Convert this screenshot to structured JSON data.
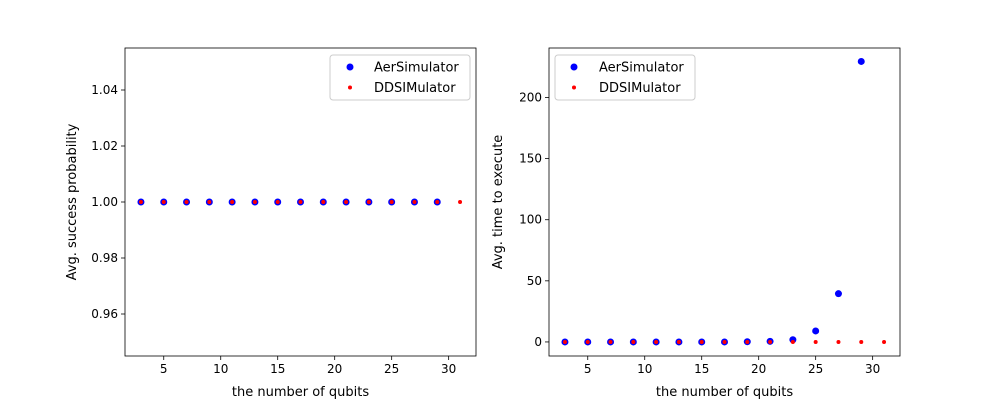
{
  "colors": {
    "aer": "#0000ff",
    "ddsi": "#ff0000",
    "axis": "#000000",
    "legend_border": "#cccccc"
  },
  "chart_data": [
    {
      "type": "scatter",
      "xlabel": "the number of qubits",
      "ylabel": "Avg. success probability",
      "xlim": [
        1.6,
        32.4
      ],
      "ylim": [
        0.945,
        1.055
      ],
      "xticks": [
        5,
        10,
        15,
        20,
        25,
        30
      ],
      "yticks": [
        0.96,
        0.98,
        1.0,
        1.02,
        1.04
      ],
      "ytick_labels": [
        "0.96",
        "0.98",
        "1.00",
        "1.02",
        "1.04"
      ],
      "grid": false,
      "legend": "top-right",
      "series": [
        {
          "name": "AerSimulator",
          "color": "#0000ff",
          "marker": "large",
          "x": [
            3,
            5,
            7,
            9,
            11,
            13,
            15,
            17,
            19,
            21,
            23,
            25,
            27,
            29
          ],
          "y": [
            1,
            1,
            1,
            1,
            1,
            1,
            1,
            1,
            1,
            1,
            1,
            1,
            1,
            1
          ]
        },
        {
          "name": "DDSIMulator",
          "color": "#ff0000",
          "marker": "small",
          "x": [
            3,
            5,
            7,
            9,
            11,
            13,
            15,
            17,
            19,
            21,
            23,
            25,
            27,
            29,
            31
          ],
          "y": [
            1,
            1,
            1,
            1,
            1,
            1,
            1,
            1,
            1,
            1,
            1,
            1,
            1,
            1,
            1
          ]
        }
      ]
    },
    {
      "type": "scatter",
      "xlabel": "the number of qubits",
      "ylabel": "Avg. time to execute",
      "xlim": [
        1.6,
        32.4
      ],
      "ylim": [
        -11.5,
        240.5
      ],
      "xticks": [
        5,
        10,
        15,
        20,
        25,
        30
      ],
      "yticks": [
        0,
        50,
        100,
        150,
        200
      ],
      "ytick_labels": [
        "0",
        "50",
        "100",
        "150",
        "200"
      ],
      "grid": false,
      "legend": "top-left",
      "series": [
        {
          "name": "AerSimulator",
          "color": "#0000ff",
          "marker": "large",
          "x": [
            3,
            5,
            7,
            9,
            11,
            13,
            15,
            17,
            19,
            21,
            23,
            25,
            27,
            29
          ],
          "y": [
            0,
            0,
            0,
            0,
            0,
            0,
            0,
            0,
            0.2,
            0.5,
            1.8,
            9,
            39.5,
            229.5
          ]
        },
        {
          "name": "DDSIMulator",
          "color": "#ff0000",
          "marker": "small",
          "x": [
            3,
            5,
            7,
            9,
            11,
            13,
            15,
            17,
            19,
            21,
            23,
            25,
            27,
            29,
            31
          ],
          "y": [
            0,
            0,
            0,
            0,
            0,
            0,
            0,
            0,
            0,
            0,
            0,
            0,
            0,
            0,
            0
          ]
        }
      ]
    }
  ]
}
